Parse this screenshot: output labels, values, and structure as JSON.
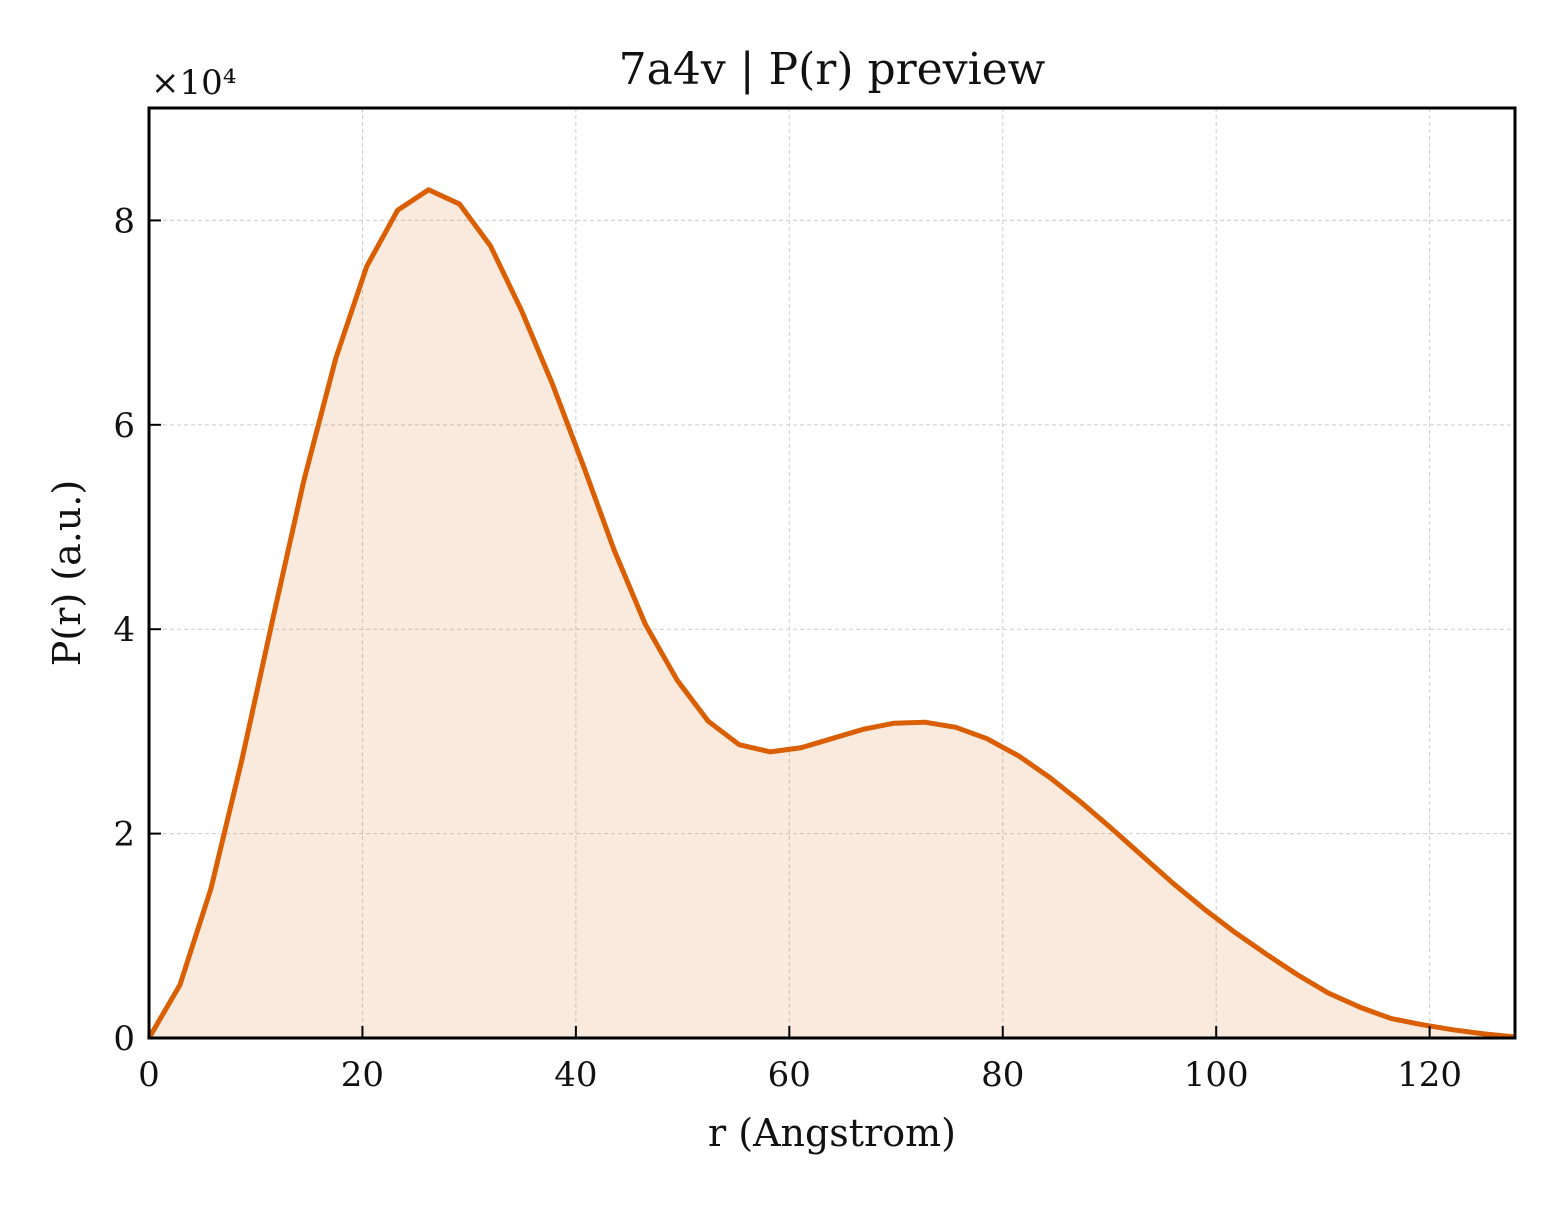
{
  "chart_data": {
    "type": "area",
    "title": "7a4v | P(r) preview",
    "xlabel": "r (Angstrom)",
    "ylabel": "P(r) (a.u.)",
    "y_multiplier_label": "×10⁴",
    "y_scale_factor": 10000,
    "xlim": [
      0,
      128
    ],
    "ylim": [
      0,
      91000
    ],
    "xticks": [
      0,
      20,
      40,
      60,
      80,
      100,
      120
    ],
    "xtick_labels": [
      "0",
      "20",
      "40",
      "60",
      "80",
      "100",
      "120"
    ],
    "yticks": [
      0,
      20000,
      40000,
      60000,
      80000
    ],
    "ytick_labels": [
      "0",
      "2",
      "4",
      "6",
      "8"
    ],
    "grid": true,
    "colors": {
      "line": "#d95f02",
      "fill": "#d95f02",
      "grid": "#cccccc",
      "axes": "#000000"
    },
    "series": [
      {
        "x": [
          0,
          2.9,
          5.8,
          8.7,
          11.6,
          14.5,
          17.5,
          20.4,
          23.3,
          26.2,
          29.1,
          32.0,
          34.9,
          37.8,
          40.7,
          43.6,
          46.5,
          49.5,
          52.4,
          55.3,
          58.2,
          61.1,
          64.0,
          66.9,
          69.8,
          72.7,
          75.6,
          78.5,
          81.5,
          84.4,
          87.3,
          90.2,
          93.1,
          96.0,
          98.9,
          101.8,
          104.7,
          107.6,
          110.5,
          113.5,
          116.4,
          119.3,
          122.2,
          125.1,
          128.0
        ],
        "y": [
          0,
          5200,
          14600,
          27200,
          41000,
          54500,
          66500,
          75500,
          81000,
          83000,
          81600,
          77500,
          71200,
          64000,
          56000,
          47700,
          40500,
          35000,
          31000,
          28700,
          28000,
          28400,
          29300,
          30200,
          30800,
          30900,
          30400,
          29300,
          27600,
          25500,
          23100,
          20500,
          17800,
          15100,
          12600,
          10300,
          8200,
          6200,
          4400,
          3000,
          1900,
          1300,
          800,
          400,
          100
        ]
      }
    ]
  }
}
